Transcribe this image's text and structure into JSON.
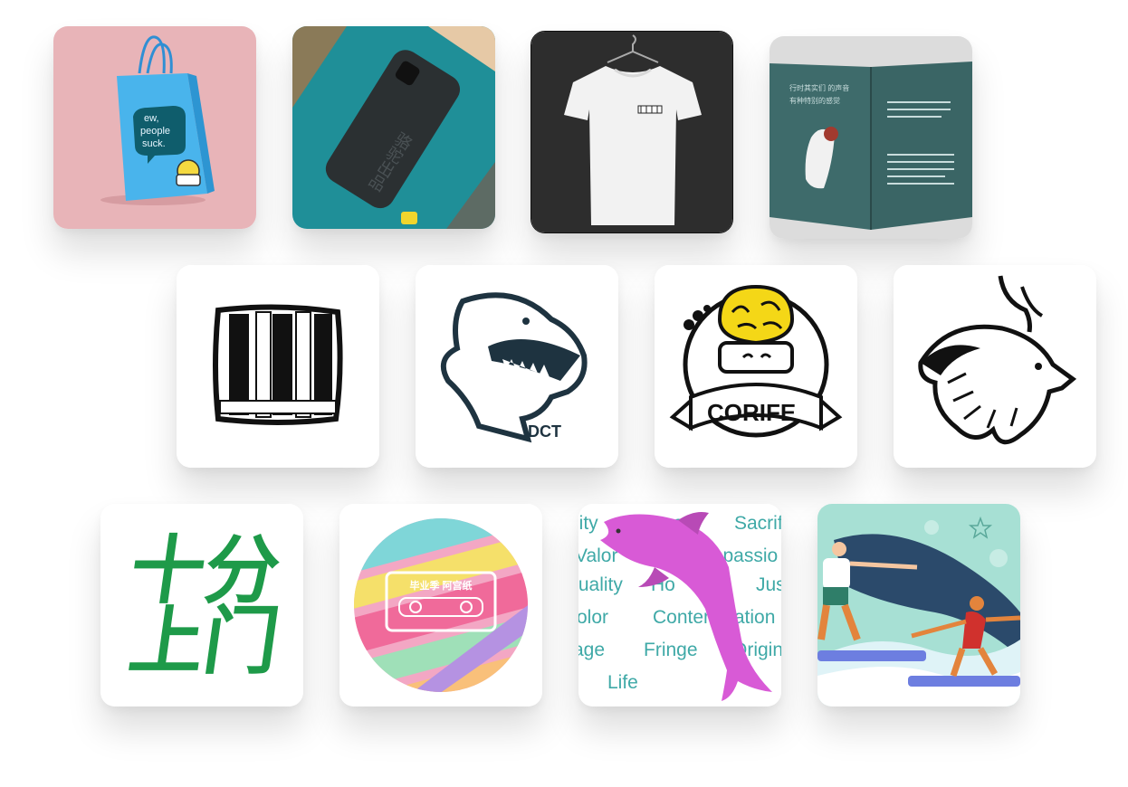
{
  "gallery": {
    "tiles": [
      {
        "id": "paper-bag",
        "bag_text": [
          "ew,",
          "people",
          "suck."
        ]
      },
      {
        "id": "phone-case",
        "case_text": "骆驼出品"
      },
      {
        "id": "t-shirt"
      },
      {
        "id": "book",
        "book_text": [
          "行时其实们 的声音",
          "有种特别的感觉"
        ]
      },
      {
        "id": "prison-bars-logo"
      },
      {
        "id": "dino-logo",
        "logo_text": "DCT"
      },
      {
        "id": "corife-logo",
        "logo_text": "CORIFE"
      },
      {
        "id": "lion-logo"
      },
      {
        "id": "shifen-logo",
        "line1": "十分",
        "line2": "上门",
        "color": "#1e9a49"
      },
      {
        "id": "cassette-art",
        "cassette_label": "毕业季 阿宫纸"
      },
      {
        "id": "dolphin-words",
        "words": [
          "lity",
          "Honor",
          "Sacrif",
          "Valor",
          "mpassio",
          "tuality",
          "Ho",
          "Jus",
          "olor",
          "Contemplation",
          "age",
          "Fringe",
          "Origin",
          "Life"
        ],
        "word_color": "#3fa9a7"
      },
      {
        "id": "surf-illustration"
      }
    ]
  }
}
